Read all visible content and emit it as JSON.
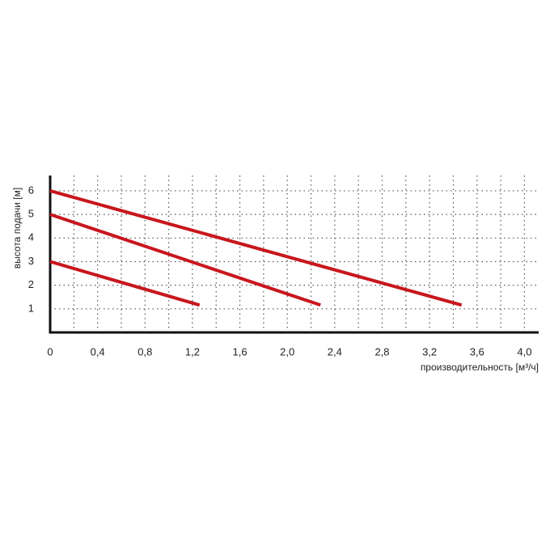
{
  "chart_data": {
    "type": "line",
    "ylabel": "высота подачи [м]",
    "xlabel": "производительность [м³/ч]",
    "xlim": [
      0,
      4.12
    ],
    "ylim": [
      0,
      6.65
    ],
    "xticks": [
      0,
      {
        "value": 0.4,
        "label": "0,4"
      },
      {
        "value": 0.8,
        "label": "0,8"
      },
      {
        "value": 1.2,
        "label": "1,2"
      },
      {
        "value": 1.6,
        "label": "1,6"
      },
      {
        "value": 2.0,
        "label": "2,0"
      },
      {
        "value": 2.4,
        "label": "2,4"
      },
      {
        "value": 2.8,
        "label": "2,8"
      },
      {
        "value": 3.2,
        "label": "3,2"
      },
      {
        "value": 3.6,
        "label": "3,6"
      },
      {
        "value": 4.0,
        "label": "4,0"
      }
    ],
    "xgrid": [
      0.2,
      0.4,
      0.6,
      0.8,
      1.0,
      1.2,
      1.4,
      1.6,
      1.8,
      2.0,
      2.2,
      2.4,
      2.6,
      2.8,
      3.0,
      3.2,
      3.4,
      3.6,
      3.8,
      4.0
    ],
    "yticks": [
      1,
      2,
      3,
      4,
      5,
      6
    ],
    "grid": true,
    "series": [
      {
        "color": "#c8161d",
        "x": [
          0,
          3.47
        ],
        "values": [
          6,
          1.16
        ]
      },
      {
        "color": "#c8161d",
        "x": [
          0,
          2.28
        ],
        "values": [
          5,
          1.16
        ]
      },
      {
        "color": "#c8161d",
        "x": [
          0,
          1.26
        ],
        "values": [
          3,
          1.16
        ]
      }
    ]
  }
}
